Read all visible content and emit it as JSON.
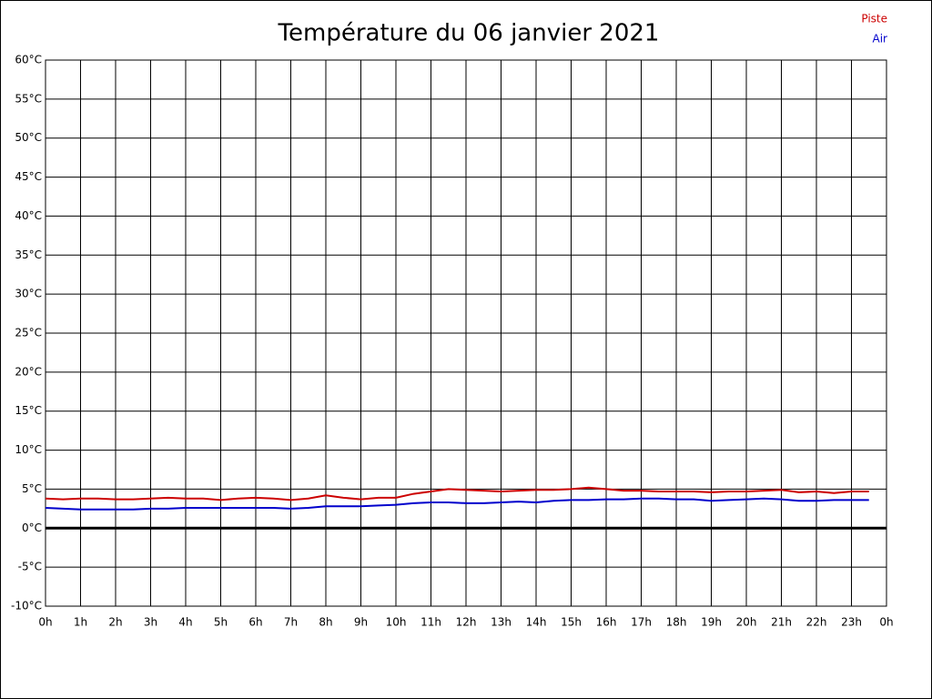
{
  "chart_data": {
    "type": "line",
    "title": "Température du 06 janvier 2021",
    "x": [
      0,
      0.5,
      1,
      1.5,
      2,
      2.5,
      3,
      3.5,
      4,
      4.5,
      5,
      5.5,
      6,
      6.5,
      7,
      7.5,
      8,
      8.5,
      9,
      9.5,
      10,
      10.5,
      11,
      11.5,
      12,
      12.5,
      13,
      13.5,
      14,
      14.5,
      15,
      15.5,
      16,
      16.5,
      17,
      17.5,
      18,
      18.5,
      19,
      19.5,
      20,
      20.5,
      21,
      21.5,
      22,
      22.5,
      23,
      23.5
    ],
    "series": [
      {
        "name": "Piste",
        "color": "#cc0000",
        "values": [
          3.8,
          3.7,
          3.8,
          3.8,
          3.7,
          3.7,
          3.8,
          3.9,
          3.8,
          3.8,
          3.6,
          3.8,
          3.9,
          3.8,
          3.6,
          3.8,
          4.2,
          3.9,
          3.7,
          3.9,
          3.9,
          4.4,
          4.7,
          5.0,
          4.9,
          4.8,
          4.7,
          4.8,
          4.9,
          4.9,
          5.0,
          5.2,
          5.0,
          4.8,
          4.8,
          4.7,
          4.7,
          4.7,
          4.6,
          4.7,
          4.7,
          4.8,
          4.9,
          4.6,
          4.7,
          4.5,
          4.7,
          4.7
        ]
      },
      {
        "name": "Air",
        "color": "#0000cc",
        "values": [
          2.6,
          2.5,
          2.4,
          2.4,
          2.4,
          2.4,
          2.5,
          2.5,
          2.6,
          2.6,
          2.6,
          2.6,
          2.6,
          2.6,
          2.5,
          2.6,
          2.8,
          2.8,
          2.8,
          2.9,
          3.0,
          3.2,
          3.3,
          3.3,
          3.2,
          3.2,
          3.3,
          3.4,
          3.3,
          3.5,
          3.6,
          3.6,
          3.7,
          3.7,
          3.8,
          3.8,
          3.7,
          3.7,
          3.5,
          3.6,
          3.7,
          3.8,
          3.7,
          3.5,
          3.5,
          3.6,
          3.6,
          3.6
        ]
      }
    ],
    "xlim": [
      0,
      24
    ],
    "xticks": [
      {
        "value": 0,
        "label": "0h"
      },
      {
        "value": 1,
        "label": "1h"
      },
      {
        "value": 2,
        "label": "2h"
      },
      {
        "value": 3,
        "label": "3h"
      },
      {
        "value": 4,
        "label": "4h"
      },
      {
        "value": 5,
        "label": "5h"
      },
      {
        "value": 6,
        "label": "6h"
      },
      {
        "value": 7,
        "label": "7h"
      },
      {
        "value": 8,
        "label": "8h"
      },
      {
        "value": 9,
        "label": "9h"
      },
      {
        "value": 10,
        "label": "10h"
      },
      {
        "value": 11,
        "label": "11h"
      },
      {
        "value": 12,
        "label": "12h"
      },
      {
        "value": 13,
        "label": "13h"
      },
      {
        "value": 14,
        "label": "14h"
      },
      {
        "value": 15,
        "label": "15h"
      },
      {
        "value": 16,
        "label": "16h"
      },
      {
        "value": 17,
        "label": "17h"
      },
      {
        "value": 18,
        "label": "18h"
      },
      {
        "value": 19,
        "label": "19h"
      },
      {
        "value": 20,
        "label": "20h"
      },
      {
        "value": 21,
        "label": "21h"
      },
      {
        "value": 22,
        "label": "22h"
      },
      {
        "value": 23,
        "label": "23h"
      },
      {
        "value": 24,
        "label": "0h"
      }
    ],
    "ylim": [
      -10,
      60
    ],
    "yticks": [
      {
        "value": -10,
        "label": "-10°C"
      },
      {
        "value": -5,
        "label": "-5°C"
      },
      {
        "value": 0,
        "label": "0°C"
      },
      {
        "value": 5,
        "label": "5°C"
      },
      {
        "value": 10,
        "label": "10°C"
      },
      {
        "value": 15,
        "label": "15°C"
      },
      {
        "value": 20,
        "label": "20°C"
      },
      {
        "value": 25,
        "label": "25°C"
      },
      {
        "value": 30,
        "label": "30°C"
      },
      {
        "value": 35,
        "label": "35°C"
      },
      {
        "value": 40,
        "label": "40°C"
      },
      {
        "value": 45,
        "label": "45°C"
      },
      {
        "value": 50,
        "label": "50°C"
      },
      {
        "value": 55,
        "label": "55°C"
      },
      {
        "value": 60,
        "label": "60°C"
      }
    ],
    "grid": true,
    "legend": "top-right"
  }
}
